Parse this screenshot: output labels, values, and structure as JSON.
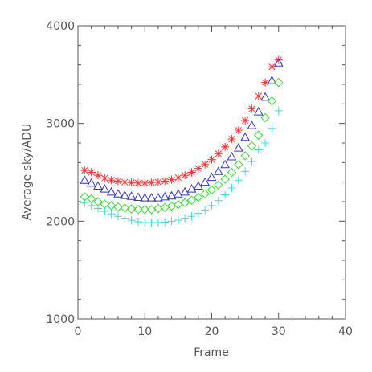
{
  "chart_data": {
    "type": "scatter",
    "xlabel": "Frame",
    "ylabel": "Average sky/ADU",
    "xlim": [
      0,
      40
    ],
    "ylim": [
      1000,
      4000
    ],
    "xticks": [
      0,
      10,
      20,
      30,
      40
    ],
    "yticks": [
      1000,
      2000,
      3000,
      4000
    ],
    "x": [
      1,
      2,
      3,
      4,
      5,
      6,
      7,
      8,
      9,
      10,
      11,
      12,
      13,
      14,
      15,
      16,
      17,
      18,
      19,
      20,
      21,
      22,
      23,
      24,
      25,
      26,
      27,
      28,
      29,
      30
    ],
    "series": [
      {
        "marker": "asterisk",
        "color": "#ff3333",
        "values": [
          2520,
          2500,
          2470,
          2440,
          2420,
          2410,
          2400,
          2395,
          2390,
          2390,
          2395,
          2400,
          2410,
          2425,
          2445,
          2470,
          2500,
          2540,
          2580,
          2630,
          2690,
          2760,
          2840,
          2930,
          3030,
          3150,
          3280,
          3420,
          3580,
          3650
        ]
      },
      {
        "marker": "triangle",
        "color": "#3333cc",
        "values": [
          2420,
          2390,
          2360,
          2330,
          2300,
          2280,
          2265,
          2255,
          2245,
          2240,
          2240,
          2240,
          2250,
          2260,
          2280,
          2300,
          2330,
          2360,
          2400,
          2450,
          2510,
          2580,
          2660,
          2750,
          2860,
          2980,
          3120,
          3270,
          3440,
          3620
        ]
      },
      {
        "marker": "diamond",
        "color": "#33dd33",
        "values": [
          2250,
          2230,
          2200,
          2175,
          2160,
          2145,
          2135,
          2125,
          2120,
          2120,
          2120,
          2130,
          2140,
          2155,
          2170,
          2190,
          2215,
          2245,
          2280,
          2320,
          2370,
          2430,
          2500,
          2580,
          2670,
          2770,
          2880,
          3060,
          3230,
          3420
        ]
      },
      {
        "marker": "plus",
        "color": "#33dddd",
        "values": [
          2190,
          2160,
          2130,
          2100,
          2075,
          2050,
          2030,
          2010,
          1995,
          1985,
          1985,
          1985,
          1990,
          2000,
          2010,
          2030,
          2050,
          2080,
          2115,
          2160,
          2210,
          2270,
          2340,
          2420,
          2510,
          2610,
          2730,
          2800,
          2950,
          3130
        ]
      }
    ]
  }
}
